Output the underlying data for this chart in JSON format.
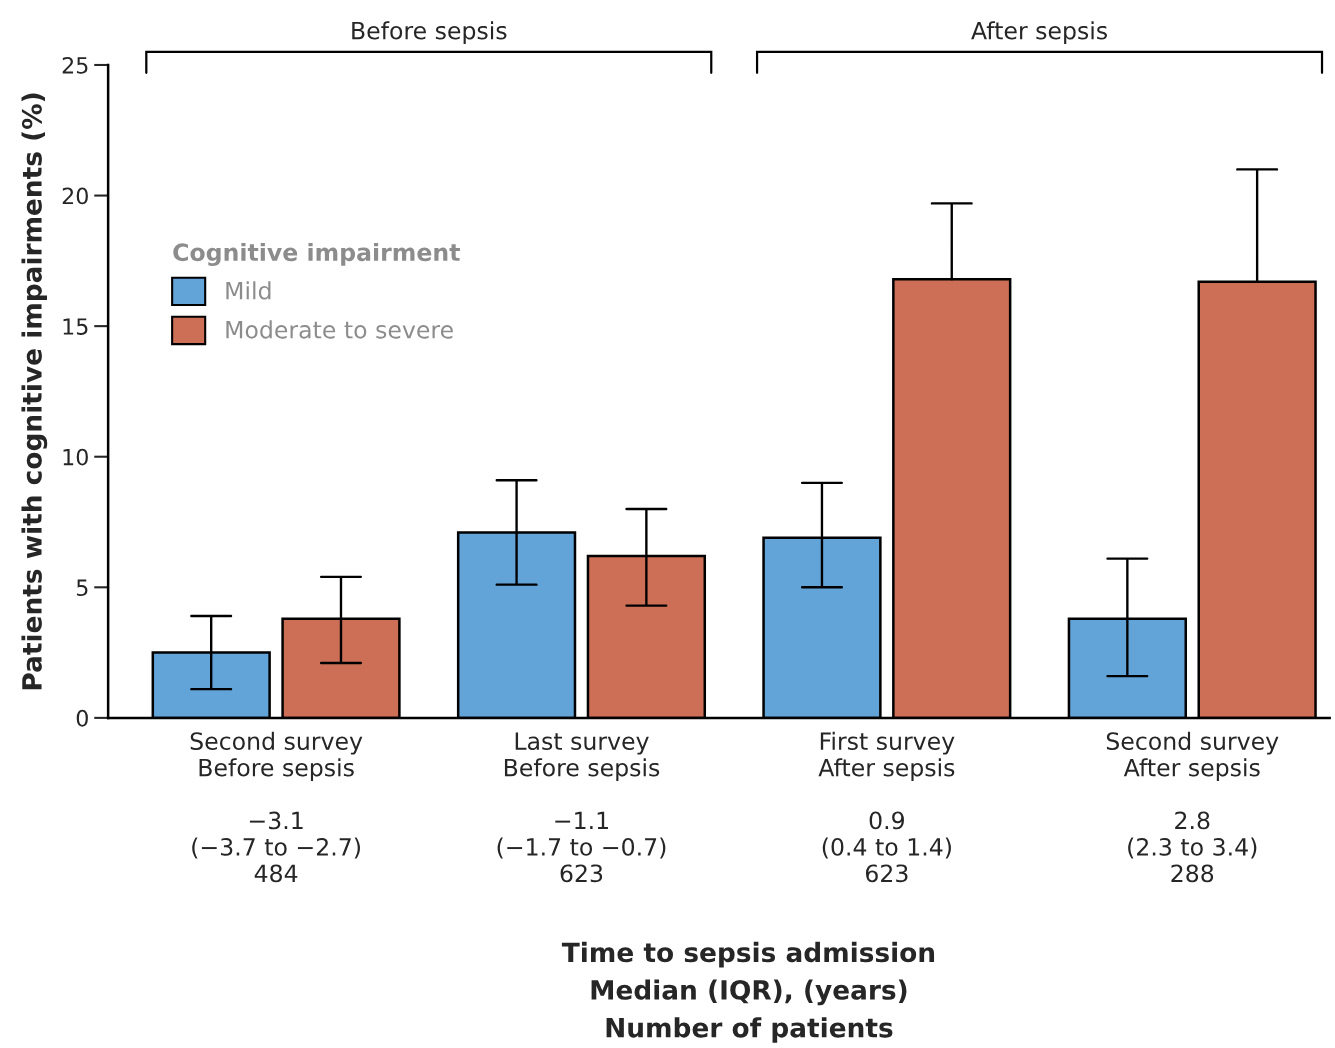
{
  "chart_data": {
    "type": "bar",
    "categories": [
      "Second survey\nBefore sepsis\n\n−3.1\n(−3.7 to −2.7)\n484",
      "Last survey\nBefore sepsis\n\n−1.1\n(−1.7 to −0.7)\n623",
      "First survey\nAfter sepsis\n\n0.9\n(0.4 to 1.4)\n623",
      "Second survey\nAfter sepsis\n\n2.8\n(2.3 to 3.4)\n288"
    ],
    "series": [
      {
        "name": "Mild",
        "color": "#62a3d8",
        "values": [
          2.5,
          7.1,
          6.9,
          3.8
        ],
        "errors": [
          [
            1.1,
            3.9
          ],
          [
            5.1,
            9.1
          ],
          [
            5.0,
            9.0
          ],
          [
            1.6,
            6.1
          ]
        ]
      },
      {
        "name": "Moderate to severe",
        "color": "#cd6e56",
        "values": [
          3.8,
          6.2,
          16.8,
          16.7
        ],
        "errors": [
          [
            2.1,
            5.4
          ],
          [
            4.3,
            8.0
          ],
          [
            16.8,
            19.7
          ],
          [
            16.7,
            21.0
          ]
        ]
      }
    ],
    "ylabel": "Patients with cognitive impairments (%)",
    "legend_title": "Cognitive impairment",
    "legend": "center left",
    "annotations": [
      "Before sepsis",
      "After sepsis",
      "Time to sepsis admission\nMedian (IQR), (years)\nNumber of patients"
    ],
    "ylim": [
      0,
      25
    ],
    "yticks": [
      0,
      5,
      10,
      15,
      20,
      25
    ],
    "grid": false
  }
}
